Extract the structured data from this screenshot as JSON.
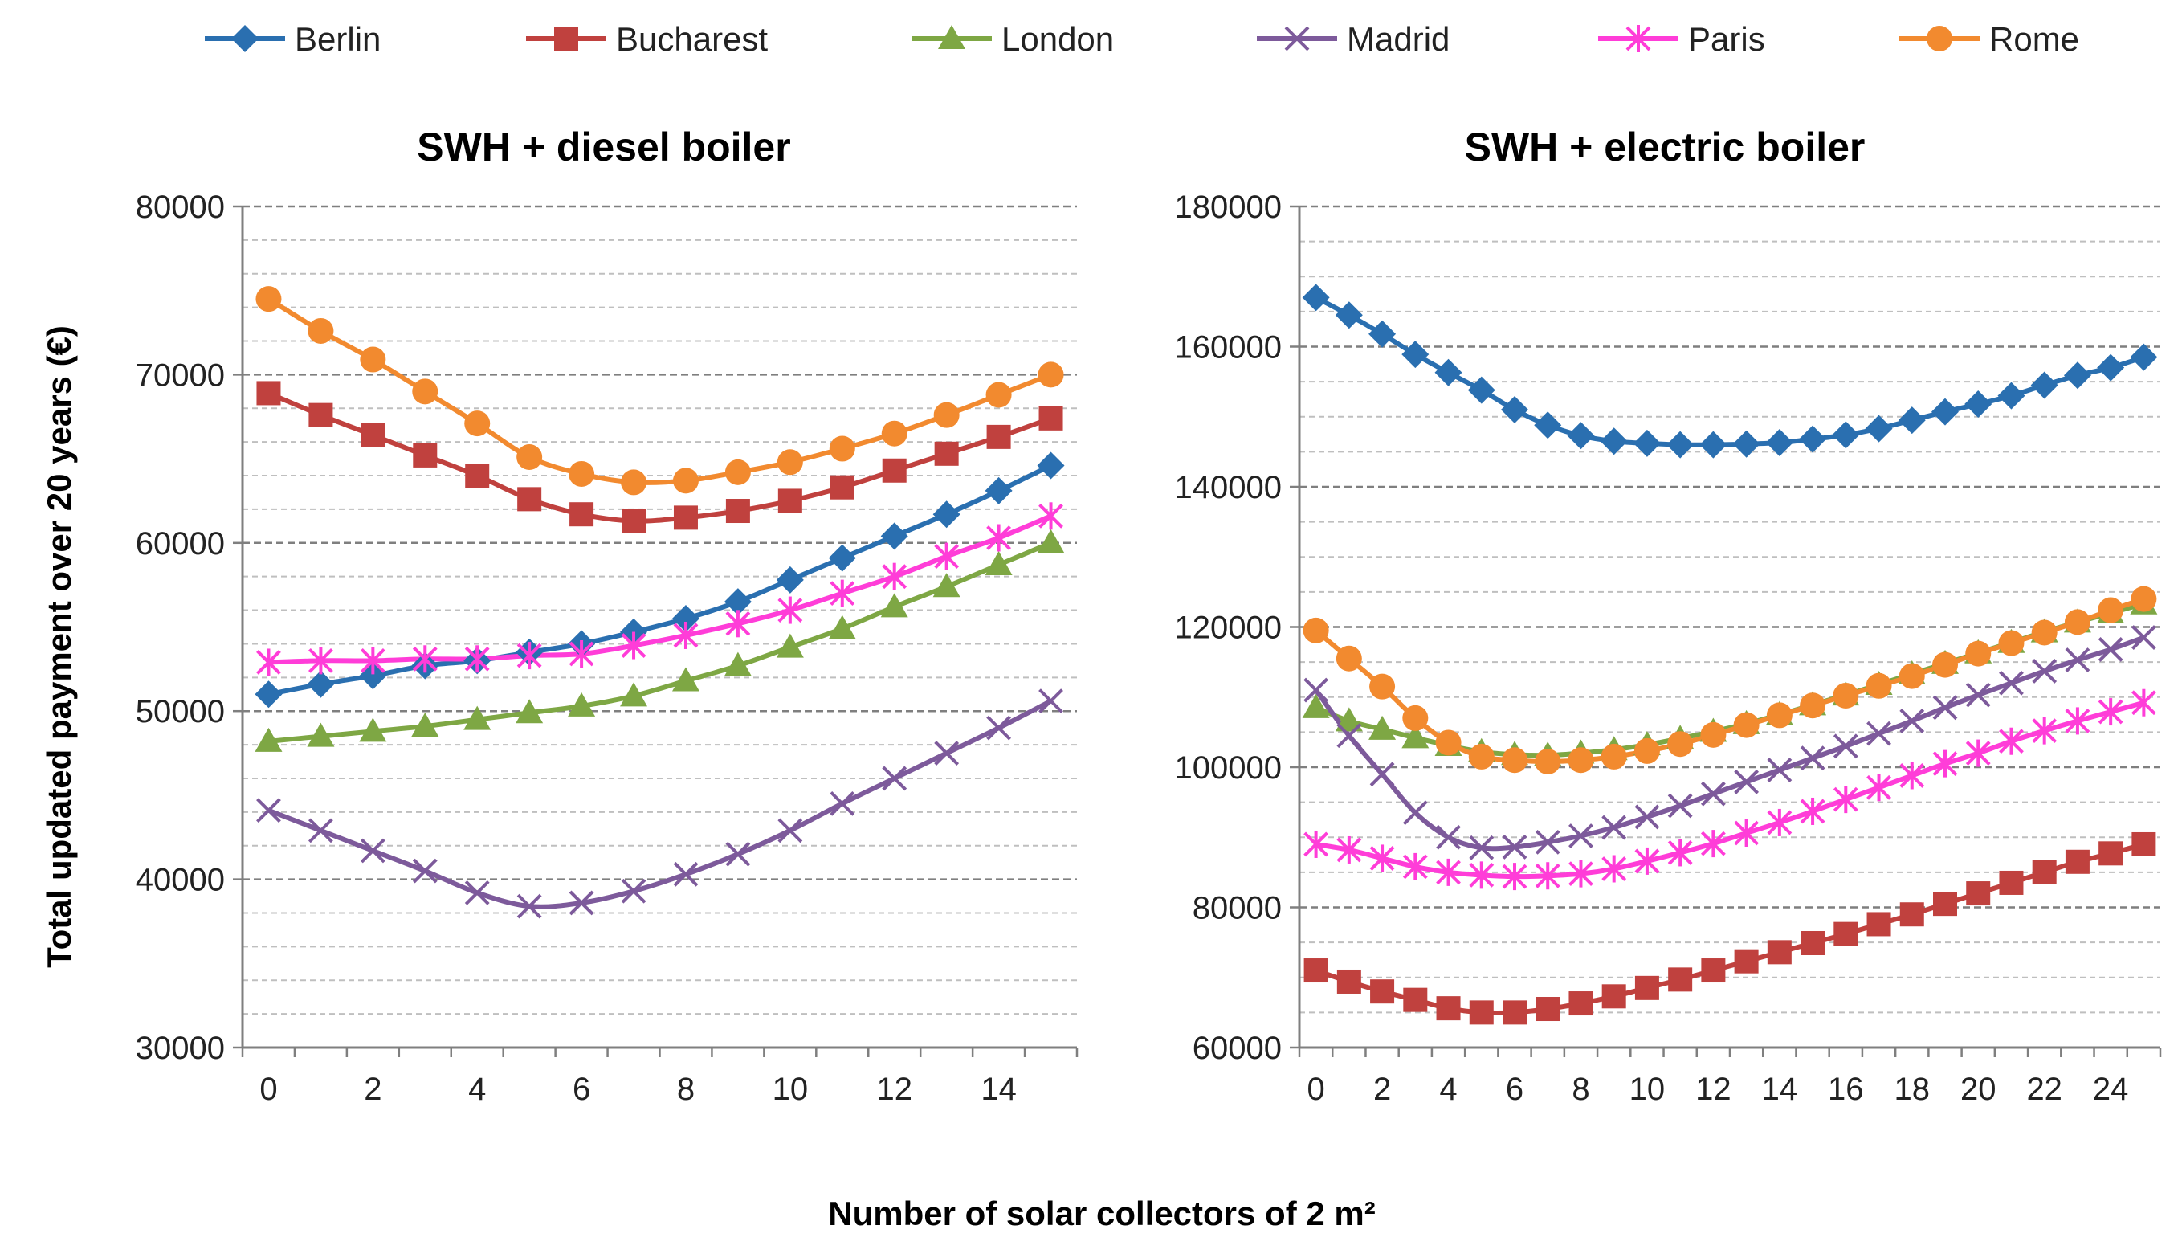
{
  "chart_data": {
    "legend": [
      {
        "name": "Berlin",
        "color": "#2a6fb0",
        "marker": "diamond"
      },
      {
        "name": "Bucharest",
        "color": "#c0413e",
        "marker": "square"
      },
      {
        "name": "London",
        "color": "#7ea744",
        "marker": "triangle"
      },
      {
        "name": "Madrid",
        "color": "#7d5a9b",
        "marker": "x"
      },
      {
        "name": "Paris",
        "color": "#ff3dd8",
        "marker": "star"
      },
      {
        "name": "Rome",
        "color": "#f28a2f",
        "marker": "circle"
      }
    ],
    "shared_xlabel": "Number of solar collectors of 2 m²",
    "shared_ylabel": "Total updated payment over 20 years (€)",
    "charts": [
      {
        "type": "line",
        "title": "SWH + diesel boiler",
        "x": [
          0,
          1,
          2,
          3,
          4,
          5,
          6,
          7,
          8,
          9,
          10,
          11,
          12,
          13,
          14,
          15
        ],
        "xticks": [
          "0",
          "2",
          "4",
          "6",
          "8",
          "10",
          "12",
          "14"
        ],
        "xtick_values": [
          0,
          2,
          4,
          6,
          8,
          10,
          12,
          14
        ],
        "xlim": [
          -0.5,
          15.5
        ],
        "ylim": [
          30000,
          80000
        ],
        "yticks": [
          "30000",
          "40000",
          "50000",
          "60000",
          "70000",
          "80000"
        ],
        "ytick_values": [
          30000,
          40000,
          50000,
          60000,
          70000,
          80000
        ],
        "minor_step": 2000,
        "series": [
          {
            "name": "Berlin",
            "values": [
              51000,
              51600,
              52100,
              52700,
              53000,
              53500,
              54000,
              54700,
              55500,
              56500,
              57800,
              59100,
              60400,
              61700,
              63100,
              64600
            ]
          },
          {
            "name": "Bucharest",
            "values": [
              68900,
              67600,
              66400,
              65200,
              64000,
              62600,
              61700,
              61300,
              61500,
              61900,
              62500,
              63300,
              64300,
              65300,
              66300,
              67400
            ]
          },
          {
            "name": "London",
            "values": [
              48200,
              48500,
              48800,
              49100,
              49500,
              49900,
              50300,
              50900,
              51800,
              52700,
              53800,
              54900,
              56200,
              57400,
              58700,
              60000
            ]
          },
          {
            "name": "Madrid",
            "values": [
              44100,
              42900,
              41700,
              40500,
              39200,
              38400,
              38600,
              39300,
              40300,
              41500,
              42900,
              44500,
              46000,
              47500,
              49000,
              50600
            ]
          },
          {
            "name": "Paris",
            "values": [
              52900,
              53000,
              53000,
              53100,
              53100,
              53300,
              53400,
              53900,
              54500,
              55200,
              56000,
              57000,
              58000,
              59200,
              60300,
              61600
            ]
          },
          {
            "name": "Rome",
            "values": [
              74500,
              72600,
              70900,
              69000,
              67100,
              65100,
              64100,
              63600,
              63700,
              64200,
              64800,
              65600,
              66500,
              67600,
              68800,
              70000
            ]
          }
        ]
      },
      {
        "type": "line",
        "title": "SWH + electric boiler",
        "x": [
          0,
          1,
          2,
          3,
          4,
          5,
          6,
          7,
          8,
          9,
          10,
          11,
          12,
          13,
          14,
          15,
          16,
          17,
          18,
          19,
          20,
          21,
          22,
          23,
          24,
          25
        ],
        "xticks": [
          "0",
          "2",
          "4",
          "6",
          "8",
          "10",
          "12",
          "14",
          "16",
          "18",
          "20",
          "22",
          "24"
        ],
        "xtick_values": [
          0,
          2,
          4,
          6,
          8,
          10,
          12,
          14,
          16,
          18,
          20,
          22,
          24
        ],
        "xlim": [
          -0.5,
          25.5
        ],
        "ylim": [
          60000,
          180000
        ],
        "yticks": [
          "60000",
          "80000",
          "100000",
          "120000",
          "140000",
          "160000",
          "180000"
        ],
        "ytick_values": [
          60000,
          80000,
          100000,
          120000,
          140000,
          160000,
          180000
        ],
        "minor_step": 5000,
        "series": [
          {
            "name": "Berlin",
            "values": [
              167000,
              164500,
              161800,
              158900,
              156300,
              153800,
              151000,
              148800,
              147300,
              146500,
              146200,
              146000,
              146000,
              146100,
              146300,
              146800,
              147400,
              148300,
              149500,
              150700,
              151800,
              153000,
              154500,
              155900,
              157000,
              158500
            ]
          },
          {
            "name": "Bucharest",
            "values": [
              71000,
              69400,
              68000,
              66800,
              65600,
              65000,
              65000,
              65500,
              66300,
              67300,
              68500,
              69700,
              71000,
              72300,
              73600,
              74900,
              76200,
              77600,
              79000,
              80500,
              82000,
              83500,
              85000,
              86500,
              87700,
              89000
            ]
          },
          {
            "name": "London",
            "values": [
              108500,
              106600,
              105400,
              104200,
              103100,
              102200,
              101800,
              101700,
              102000,
              102500,
              103200,
              104100,
              105100,
              106200,
              107500,
              108900,
              110300,
              111800,
              113300,
              114800,
              116300,
              117800,
              119300,
              120700,
              122000,
              123300
            ]
          },
          {
            "name": "Madrid",
            "values": [
              111000,
              104500,
              99000,
              93500,
              90000,
              88500,
              88600,
              89300,
              90200,
              91400,
              92900,
              94500,
              96200,
              97900,
              99600,
              101300,
              103000,
              104800,
              106600,
              108500,
              110300,
              112000,
              113700,
              115300,
              116800,
              118500
            ]
          },
          {
            "name": "Paris",
            "values": [
              89000,
              88200,
              87000,
              85800,
              85000,
              84600,
              84400,
              84500,
              84800,
              85500,
              86600,
              87800,
              89100,
              90600,
              92100,
              93700,
              95400,
              97100,
              98800,
              100500,
              102000,
              103700,
              105200,
              106600,
              107900,
              109200
            ]
          },
          {
            "name": "Rome",
            "values": [
              119500,
              115500,
              111500,
              107000,
              103500,
              101500,
              101000,
              100800,
              101000,
              101500,
              102300,
              103300,
              104600,
              106000,
              107400,
              108800,
              110200,
              111600,
              113000,
              114600,
              116200,
              117700,
              119200,
              120700,
              122400,
              124000
            ]
          }
        ]
      }
    ]
  }
}
